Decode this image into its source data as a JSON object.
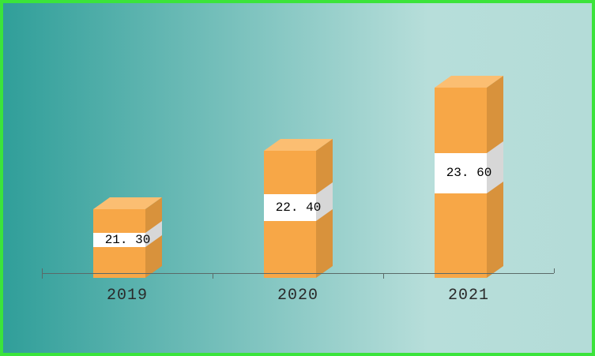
{
  "frame": {
    "border_color": "#3BE43B",
    "bg_gradient_left": "#2F9E99",
    "bg_gradient_mid": "#B7DEDA",
    "bg_gradient_right": "#B4DCD8"
  },
  "chart_data": {
    "type": "bar",
    "title": "",
    "categories": [
      "2019",
      "2020",
      "2021"
    ],
    "values": [
      21.3,
      22.4,
      23.6
    ],
    "value_labels": [
      "21. 30",
      "22. 40",
      "23. 60"
    ],
    "xlabel": "",
    "ylabel": "",
    "ylim": [
      20,
      24
    ],
    "grid": false,
    "legend": false,
    "bar_front_color": "#F7A747",
    "bar_top_color": "#FBBE72",
    "bar_side_color": "#D8923C",
    "label_band_color": "#FFFFFF",
    "label_band_side_color": "#D7D7D7",
    "axis_color": "#5A6A68",
    "category_text_color": "#2A2A2A",
    "value_text_color": "#000000"
  }
}
